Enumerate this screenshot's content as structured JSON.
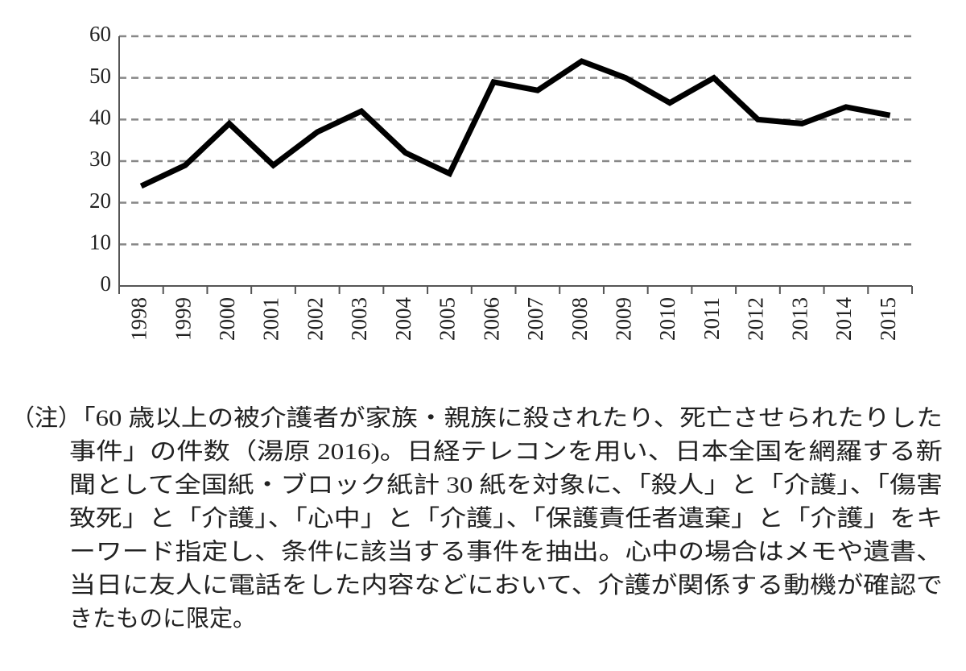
{
  "chart_data": {
    "type": "line",
    "categories": [
      "1998",
      "1999",
      "2000",
      "2001",
      "2002",
      "2003",
      "2004",
      "2005",
      "2006",
      "2007",
      "2008",
      "2009",
      "2010",
      "2011",
      "2012",
      "2013",
      "2014",
      "2015"
    ],
    "values": [
      24,
      29,
      39,
      29,
      37,
      42,
      32,
      27,
      49,
      47,
      54,
      50,
      44,
      50,
      40,
      39,
      43,
      41
    ],
    "color": "#000000",
    "ylim": [
      0,
      60
    ],
    "yticks": [
      0,
      10,
      20,
      30,
      40,
      50,
      60
    ],
    "grid": true
  },
  "note": {
    "prefix": "（注）",
    "lines": [
      "「60 歳以上の被介護者が家族・親族に殺されたり、死亡させられたりした",
      "事件」の件数（湯原 2016)。日経テレコンを用い、日本全国を網羅する新",
      "聞として全国紙・ブロック紙計 30 紙を対象に、「殺人」と「介護」、「傷害",
      "致死」と「介護」、「心中」と「介護」、「保護責任者遺棄」と「介護」をキ",
      "ーワード指定し、条件に該当する事件を抽出。心中の場合はメモや遺書、",
      "当日に友人に電話をした内容などにおいて、介護が関係する動機が確認で",
      "きたものに限定。"
    ]
  }
}
